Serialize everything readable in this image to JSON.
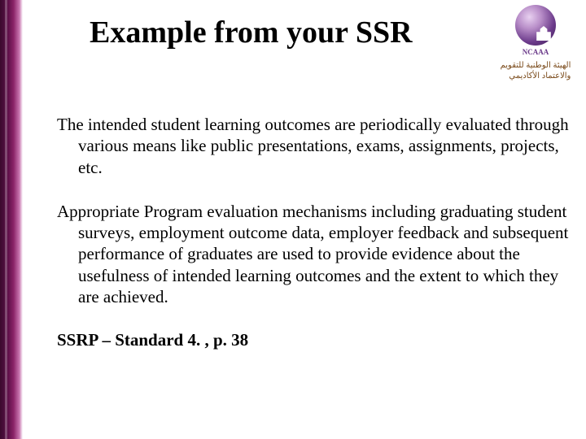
{
  "title": "Example from your SSR",
  "logo": {
    "label": "NCAAA",
    "arabic_line1": "الهيئة الوطنية للتقويم",
    "arabic_line2": "والاعتماد الأكاديمي"
  },
  "paragraphs": [
    "The intended student learning outcomes are periodically evaluated through various means like public presentations, exams, assignments, projects, etc.",
    "Appropriate Program evaluation mechanisms including graduating student surveys, employment outcome data, employer feedback and subsequent performance of graduates are used to provide evidence about the usefulness of intended learning outcomes and the extent to which they are achieved."
  ],
  "reference": "SSRP – Standard 4. , p. 38",
  "colors": {
    "accent_dark": "#3a0a2e",
    "accent_light": "#c976b0",
    "text": "#000000",
    "logo_purple": "#6b3a8a"
  },
  "typography": {
    "title_fontsize": 38,
    "body_fontsize": 21,
    "font_family": "Times New Roman"
  }
}
